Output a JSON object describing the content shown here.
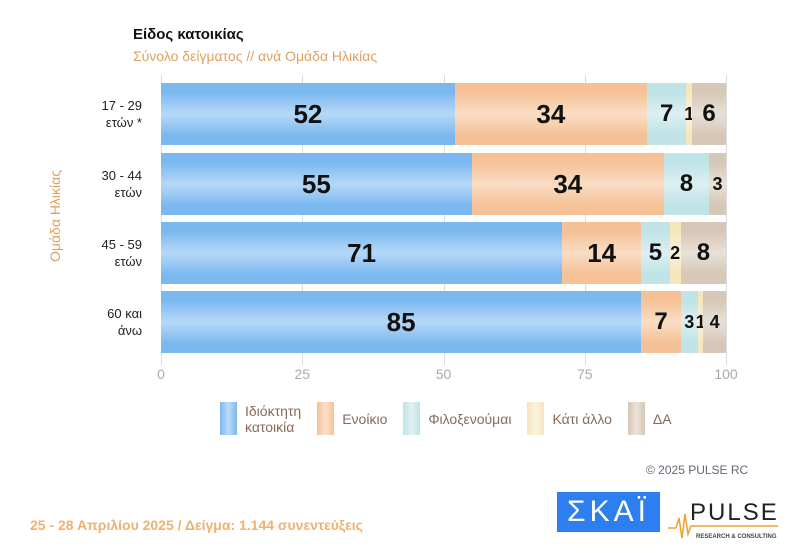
{
  "header": {
    "title": "Είδος κατοικίας",
    "subtitle": "Σύνολο δείγματος // ανά Ομάδα Ηλικίας"
  },
  "chart_data": {
    "type": "bar",
    "orientation": "horizontal-stacked",
    "ylabel": "Ομάδα Ηλικίας",
    "categories": [
      [
        "17 - 29",
        "ετών *"
      ],
      [
        "30 - 44",
        "ετών"
      ],
      [
        "45 - 59",
        "ετών"
      ],
      [
        "60 και",
        "άνω"
      ]
    ],
    "series": [
      {
        "name": "Ιδιόκτητη κατοικία",
        "color": "#7ab8ef",
        "values": [
          52,
          55,
          71,
          85
        ]
      },
      {
        "name": "Ενοίκιο",
        "color": "#f5c196",
        "values": [
          34,
          34,
          14,
          7
        ]
      },
      {
        "name": "Φιλοξενούμαι",
        "color": "#bfe3e6",
        "values": [
          7,
          8,
          5,
          3
        ]
      },
      {
        "name": "Κάτι άλλο",
        "color": "#f5e6bc",
        "values": [
          1,
          0,
          2,
          1
        ]
      },
      {
        "name": "ΔΑ",
        "color": "#d6c7b7",
        "values": [
          6,
          3,
          8,
          4
        ]
      }
    ],
    "xlim": [
      0,
      100
    ],
    "xticks": [
      "0",
      "25",
      "50",
      "75",
      "100"
    ],
    "grid": true,
    "legend_position": "bottom",
    "legend_labels": [
      [
        "Ιδιόκτητη",
        "κατοικία"
      ],
      [
        "Ενοίκιο"
      ],
      [
        "Φιλοξενούμαι"
      ],
      [
        "Κάτι άλλο"
      ],
      [
        "ΔΑ"
      ]
    ]
  },
  "watermark": "PULSE RESEARCH & CONSULTING",
  "copyright": "© 2025 PULSE RC",
  "footer": "25 - 28 Απριλίου 2025  /  Δείγμα:  1.144 συνεντεύξεις",
  "logos": {
    "skai": "ΣΚΑΪ",
    "pulse": "PULSE",
    "pulse_sub": "RESEARCH & CONSULTING"
  }
}
